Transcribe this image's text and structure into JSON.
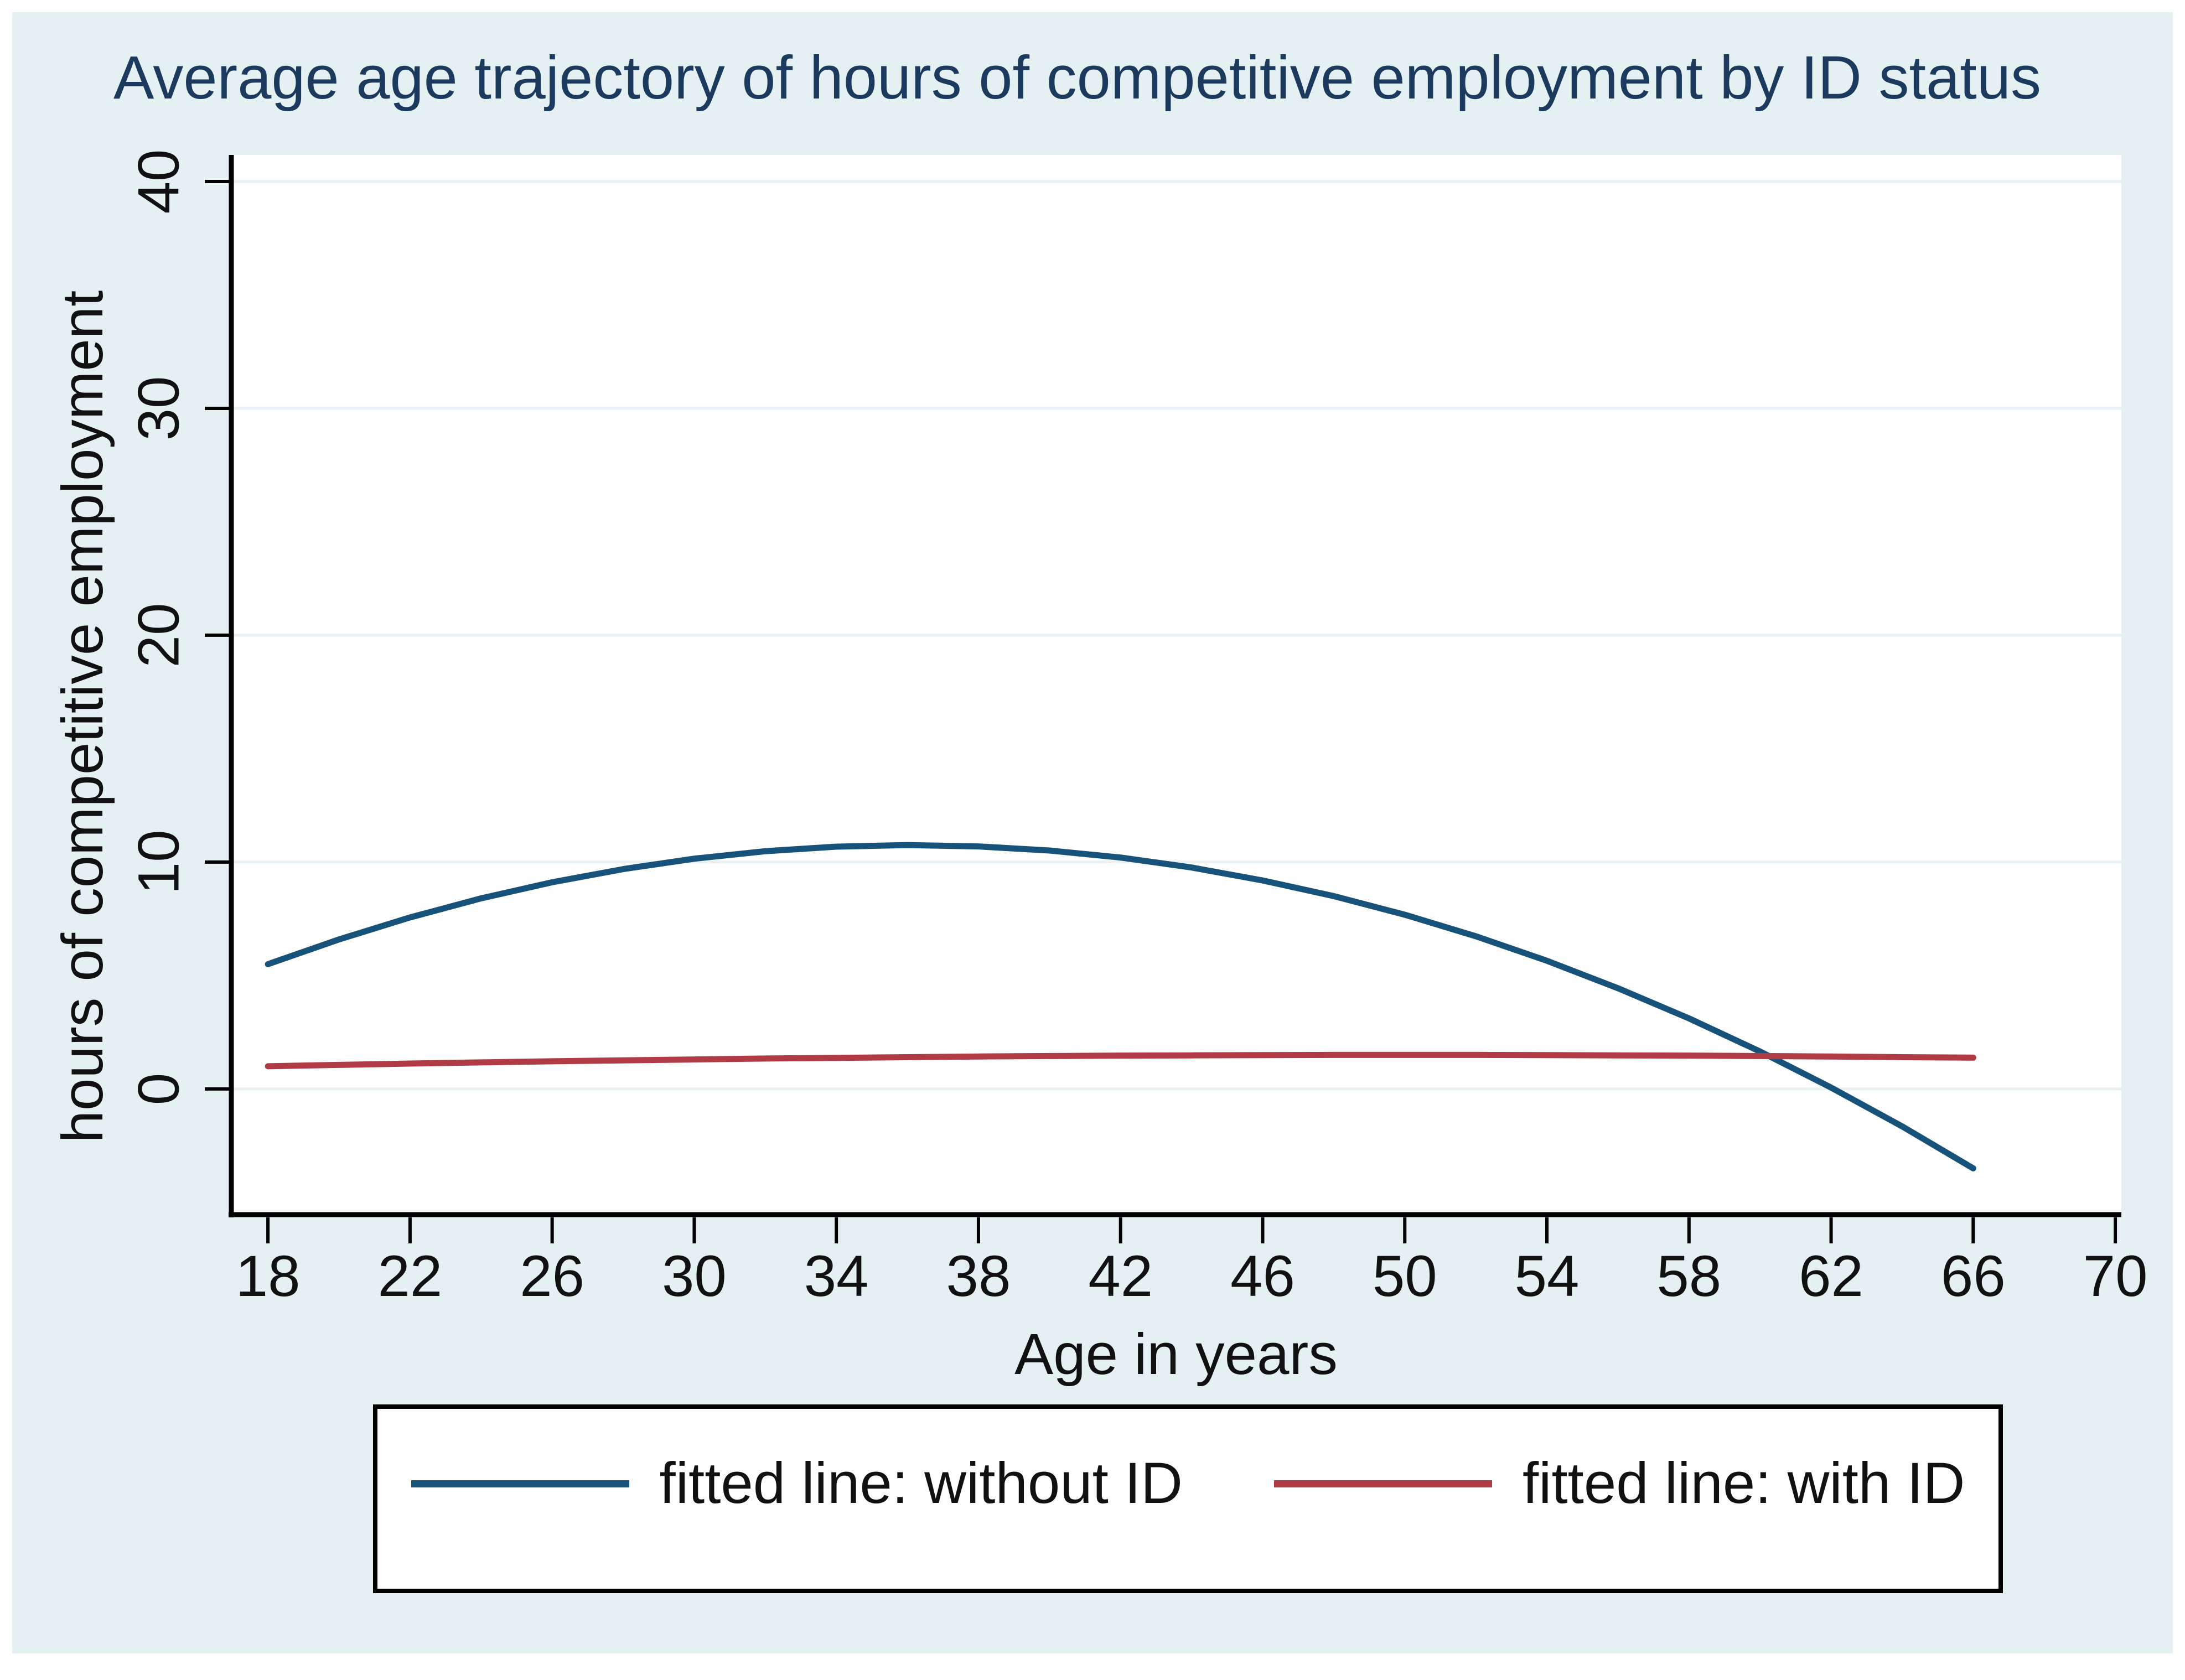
{
  "title": {
    "text": "Average age trajectory of hours of competitive employment by ID status"
  },
  "colors": {
    "page_background": "#ffffff",
    "panel_background": "#e4f0f1",
    "plot_background": "#ffffff",
    "grid": "#e8f1f3",
    "axis": "#000000",
    "tick_label": "#111111",
    "title": "#1b3a5e"
  },
  "chart_data": {
    "type": "line",
    "title": "Average age trajectory of hours of competitive employment by ID status",
    "xlabel": "Age in years",
    "ylabel": "hours of competitive employment",
    "x_ticks": [
      18,
      22,
      26,
      30,
      34,
      38,
      42,
      46,
      50,
      54,
      58,
      62,
      66,
      70
    ],
    "y_ticks": [
      0,
      10,
      20,
      30,
      40
    ],
    "xlim": [
      16.97,
      70.17
    ],
    "ylim": [
      -5.54,
      41.17
    ],
    "grid": "horizontal",
    "legend_position": "bottom",
    "x": [
      18,
      20,
      22,
      24,
      26,
      28,
      30,
      32,
      34,
      36,
      38,
      40,
      42,
      44,
      46,
      48,
      50,
      52,
      54,
      56,
      58,
      60,
      62,
      64,
      66
    ],
    "series": [
      {
        "name": "fitted line: without ID",
        "color": "#17527b",
        "values": [
          5.5,
          6.59,
          7.56,
          8.4,
          9.11,
          9.69,
          10.15,
          10.48,
          10.68,
          10.75,
          10.69,
          10.51,
          10.2,
          9.76,
          9.19,
          8.5,
          7.68,
          6.73,
          5.65,
          4.44,
          3.11,
          1.65,
          0.06,
          -1.65,
          -3.5
        ]
      },
      {
        "name": "fitted line: with ID",
        "color": "#b03b44",
        "values": [
          1.0,
          1.06,
          1.12,
          1.17,
          1.22,
          1.26,
          1.3,
          1.34,
          1.37,
          1.4,
          1.43,
          1.45,
          1.47,
          1.48,
          1.49,
          1.5,
          1.5,
          1.5,
          1.49,
          1.48,
          1.47,
          1.45,
          1.43,
          1.4,
          1.38
        ]
      }
    ]
  }
}
